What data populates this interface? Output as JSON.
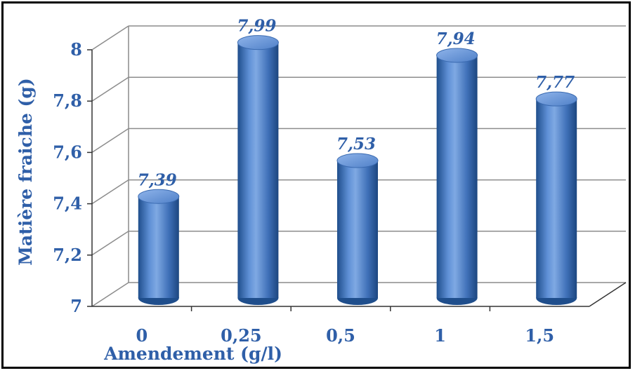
{
  "chart_data": {
    "type": "bar",
    "title": "",
    "xlabel": "Amendement (g/l)",
    "ylabel": "Matière fraiche (g)",
    "categories": [
      "0",
      "0,25",
      "0,5",
      "1",
      "1,5"
    ],
    "values": [
      7.39,
      7.99,
      7.53,
      7.94,
      7.77
    ],
    "value_labels": [
      "7,39",
      "7,99",
      "7,53",
      "7,94",
      "7,77"
    ],
    "yticks": [
      "7",
      "7,2",
      "7,4",
      "7,6",
      "7,8",
      "8"
    ],
    "ylim": [
      7,
      8
    ],
    "grid": true,
    "legend": "none",
    "style": "3d-cylinder",
    "colors": {
      "bar": "#4a7cc4",
      "bar_dark": "#1f4e8c",
      "bar_light": "#a9c6ee",
      "text": "#2f5fa8",
      "grid": "#8c8c8c",
      "frame": "#000000"
    }
  }
}
